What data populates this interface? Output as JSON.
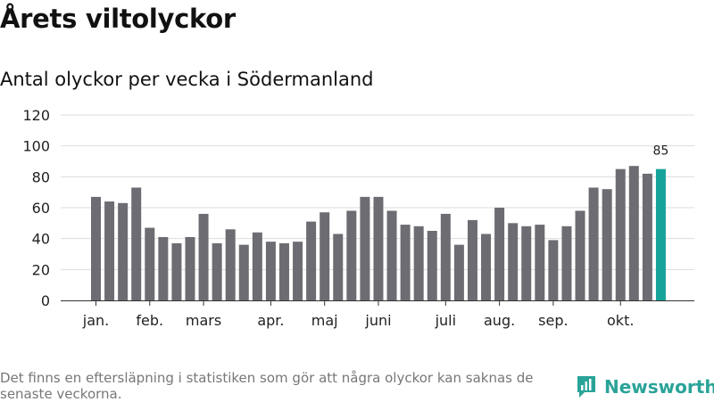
{
  "chart_data": {
    "type": "bar",
    "title": "Årets viltolyckor",
    "subtitle": "Antal olyckor per vecka i Södermanland",
    "xlabel": "",
    "ylabel": "",
    "ylim": [
      0,
      120
    ],
    "yticks": [
      0,
      20,
      40,
      60,
      80,
      100,
      120
    ],
    "grid": true,
    "values": [
      67,
      64,
      63,
      73,
      47,
      41,
      37,
      41,
      56,
      37,
      46,
      36,
      44,
      38,
      37,
      38,
      51,
      57,
      43,
      58,
      67,
      67,
      58,
      49,
      48,
      45,
      56,
      36,
      52,
      43,
      60,
      50,
      48,
      49,
      39,
      48,
      58,
      73,
      72,
      85,
      87,
      82,
      85
    ],
    "month_labels": [
      {
        "label": "jan.",
        "bar_index": 0
      },
      {
        "label": "feb.",
        "bar_index": 4
      },
      {
        "label": "mars",
        "bar_index": 8
      },
      {
        "label": "apr.",
        "bar_index": 13
      },
      {
        "label": "maj",
        "bar_index": 17
      },
      {
        "label": "juni",
        "bar_index": 21
      },
      {
        "label": "juli",
        "bar_index": 26
      },
      {
        "label": "aug.",
        "bar_index": 30
      },
      {
        "label": "sep.",
        "bar_index": 34
      },
      {
        "label": "okt.",
        "bar_index": 39
      }
    ],
    "highlight_index": 42,
    "highlight_label": "85",
    "bar_color": "#6d6c72",
    "highlight_color": "#16a39a"
  },
  "footnote": "Det finns en eftersläpning i statistiken som gör att några olyckor kan saknas de senaste veckorna.",
  "brand": {
    "name": "Newsworthy",
    "color": "#2aa398"
  }
}
